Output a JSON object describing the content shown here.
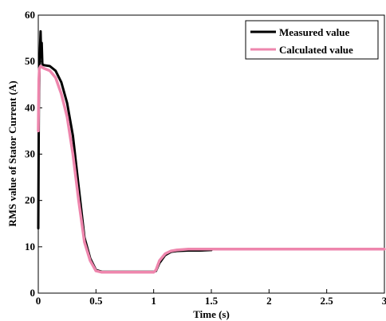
{
  "chart_data": {
    "type": "line",
    "title": "",
    "xlabel": "Time (s)",
    "ylabel": "RMS value of Stator Current (A)",
    "xlim": [
      0,
      3
    ],
    "ylim": [
      0,
      60
    ],
    "xticks": [
      0,
      0.5,
      1,
      1.5,
      2,
      2.5,
      3
    ],
    "xtick_labels": [
      "0",
      "0.5",
      "1",
      "1.5",
      "2",
      "2.5",
      "3"
    ],
    "yticks": [
      0,
      10,
      20,
      30,
      40,
      50,
      60
    ],
    "ytick_labels": [
      "0",
      "10",
      "20",
      "30",
      "40",
      "50",
      "60"
    ],
    "grid": false,
    "legend_position": "top-right",
    "series": [
      {
        "name": "Measured value",
        "color": "#000000",
        "x": [
          0,
          0.005,
          0.01,
          0.015,
          0.02,
          0.025,
          0.03,
          0.035,
          0.04,
          0.05,
          0.1,
          0.15,
          0.2,
          0.25,
          0.3,
          0.35,
          0.4,
          0.45,
          0.5,
          0.55,
          0.6,
          0.7,
          0.8,
          0.9,
          1.0,
          1.02,
          1.05,
          1.1,
          1.15,
          1.2,
          1.3,
          1.4,
          1.5
        ],
        "y": [
          14,
          40,
          48,
          53,
          56.5,
          51,
          54,
          49.5,
          49.3,
          49.2,
          49,
          48,
          45.5,
          41,
          34,
          23,
          12,
          7.5,
          5,
          4.6,
          4.6,
          4.6,
          4.6,
          4.6,
          4.6,
          4.8,
          6.5,
          8.2,
          8.9,
          9.1,
          9.2,
          9.2,
          9.3
        ]
      },
      {
        "name": "Calculated value",
        "color": "#ee86ad",
        "x": [
          0,
          0.005,
          0.01,
          0.02,
          0.03,
          0.05,
          0.1,
          0.15,
          0.2,
          0.25,
          0.3,
          0.35,
          0.4,
          0.45,
          0.5,
          0.55,
          0.6,
          0.7,
          0.8,
          0.9,
          1.0,
          1.02,
          1.05,
          1.1,
          1.15,
          1.2,
          1.3,
          1.4,
          1.5,
          2.0,
          2.5,
          3.0
        ],
        "y": [
          35,
          46,
          48.5,
          49,
          48.8,
          48.5,
          48,
          46.5,
          43,
          38,
          30,
          20,
          11,
          7,
          4.8,
          4.5,
          4.5,
          4.5,
          4.5,
          4.5,
          4.5,
          5,
          7,
          8.5,
          9.1,
          9.3,
          9.5,
          9.5,
          9.5,
          9.5,
          9.5,
          9.5
        ]
      }
    ]
  }
}
